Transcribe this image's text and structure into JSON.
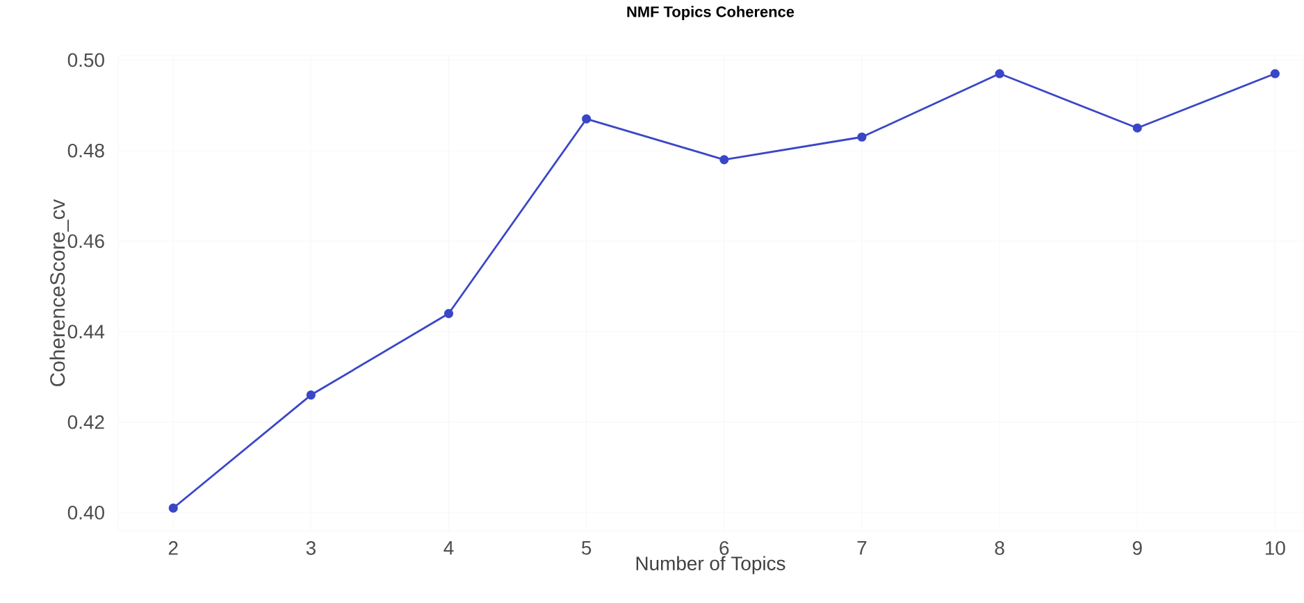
{
  "chart_data": {
    "type": "line",
    "title": "NMF Topics Coherence",
    "xlabel": "Number of Topics",
    "ylabel": "CoherenceScore_cv",
    "x": [
      2,
      3,
      4,
      5,
      6,
      7,
      8,
      9,
      10
    ],
    "series": [
      {
        "color": "#3a46c8",
        "values": [
          0.401,
          0.426,
          0.444,
          0.487,
          0.478,
          0.483,
          0.497,
          0.485,
          0.497
        ]
      }
    ],
    "xlim": [
      1.6,
      10.2
    ],
    "ylim": [
      0.396,
      0.501
    ],
    "xticks": [
      2,
      3,
      4,
      5,
      6,
      7,
      8,
      9,
      10
    ],
    "yticks": [
      {
        "value": 0.4,
        "label": "0.40"
      },
      {
        "value": 0.42,
        "label": "0.42"
      },
      {
        "value": 0.44,
        "label": "0.44"
      },
      {
        "value": 0.46,
        "label": "0.46"
      },
      {
        "value": 0.48,
        "label": "0.48"
      },
      {
        "value": 0.5,
        "label": "0.50"
      }
    ],
    "grid": true,
    "marker": "circle",
    "line_style": "solid"
  }
}
